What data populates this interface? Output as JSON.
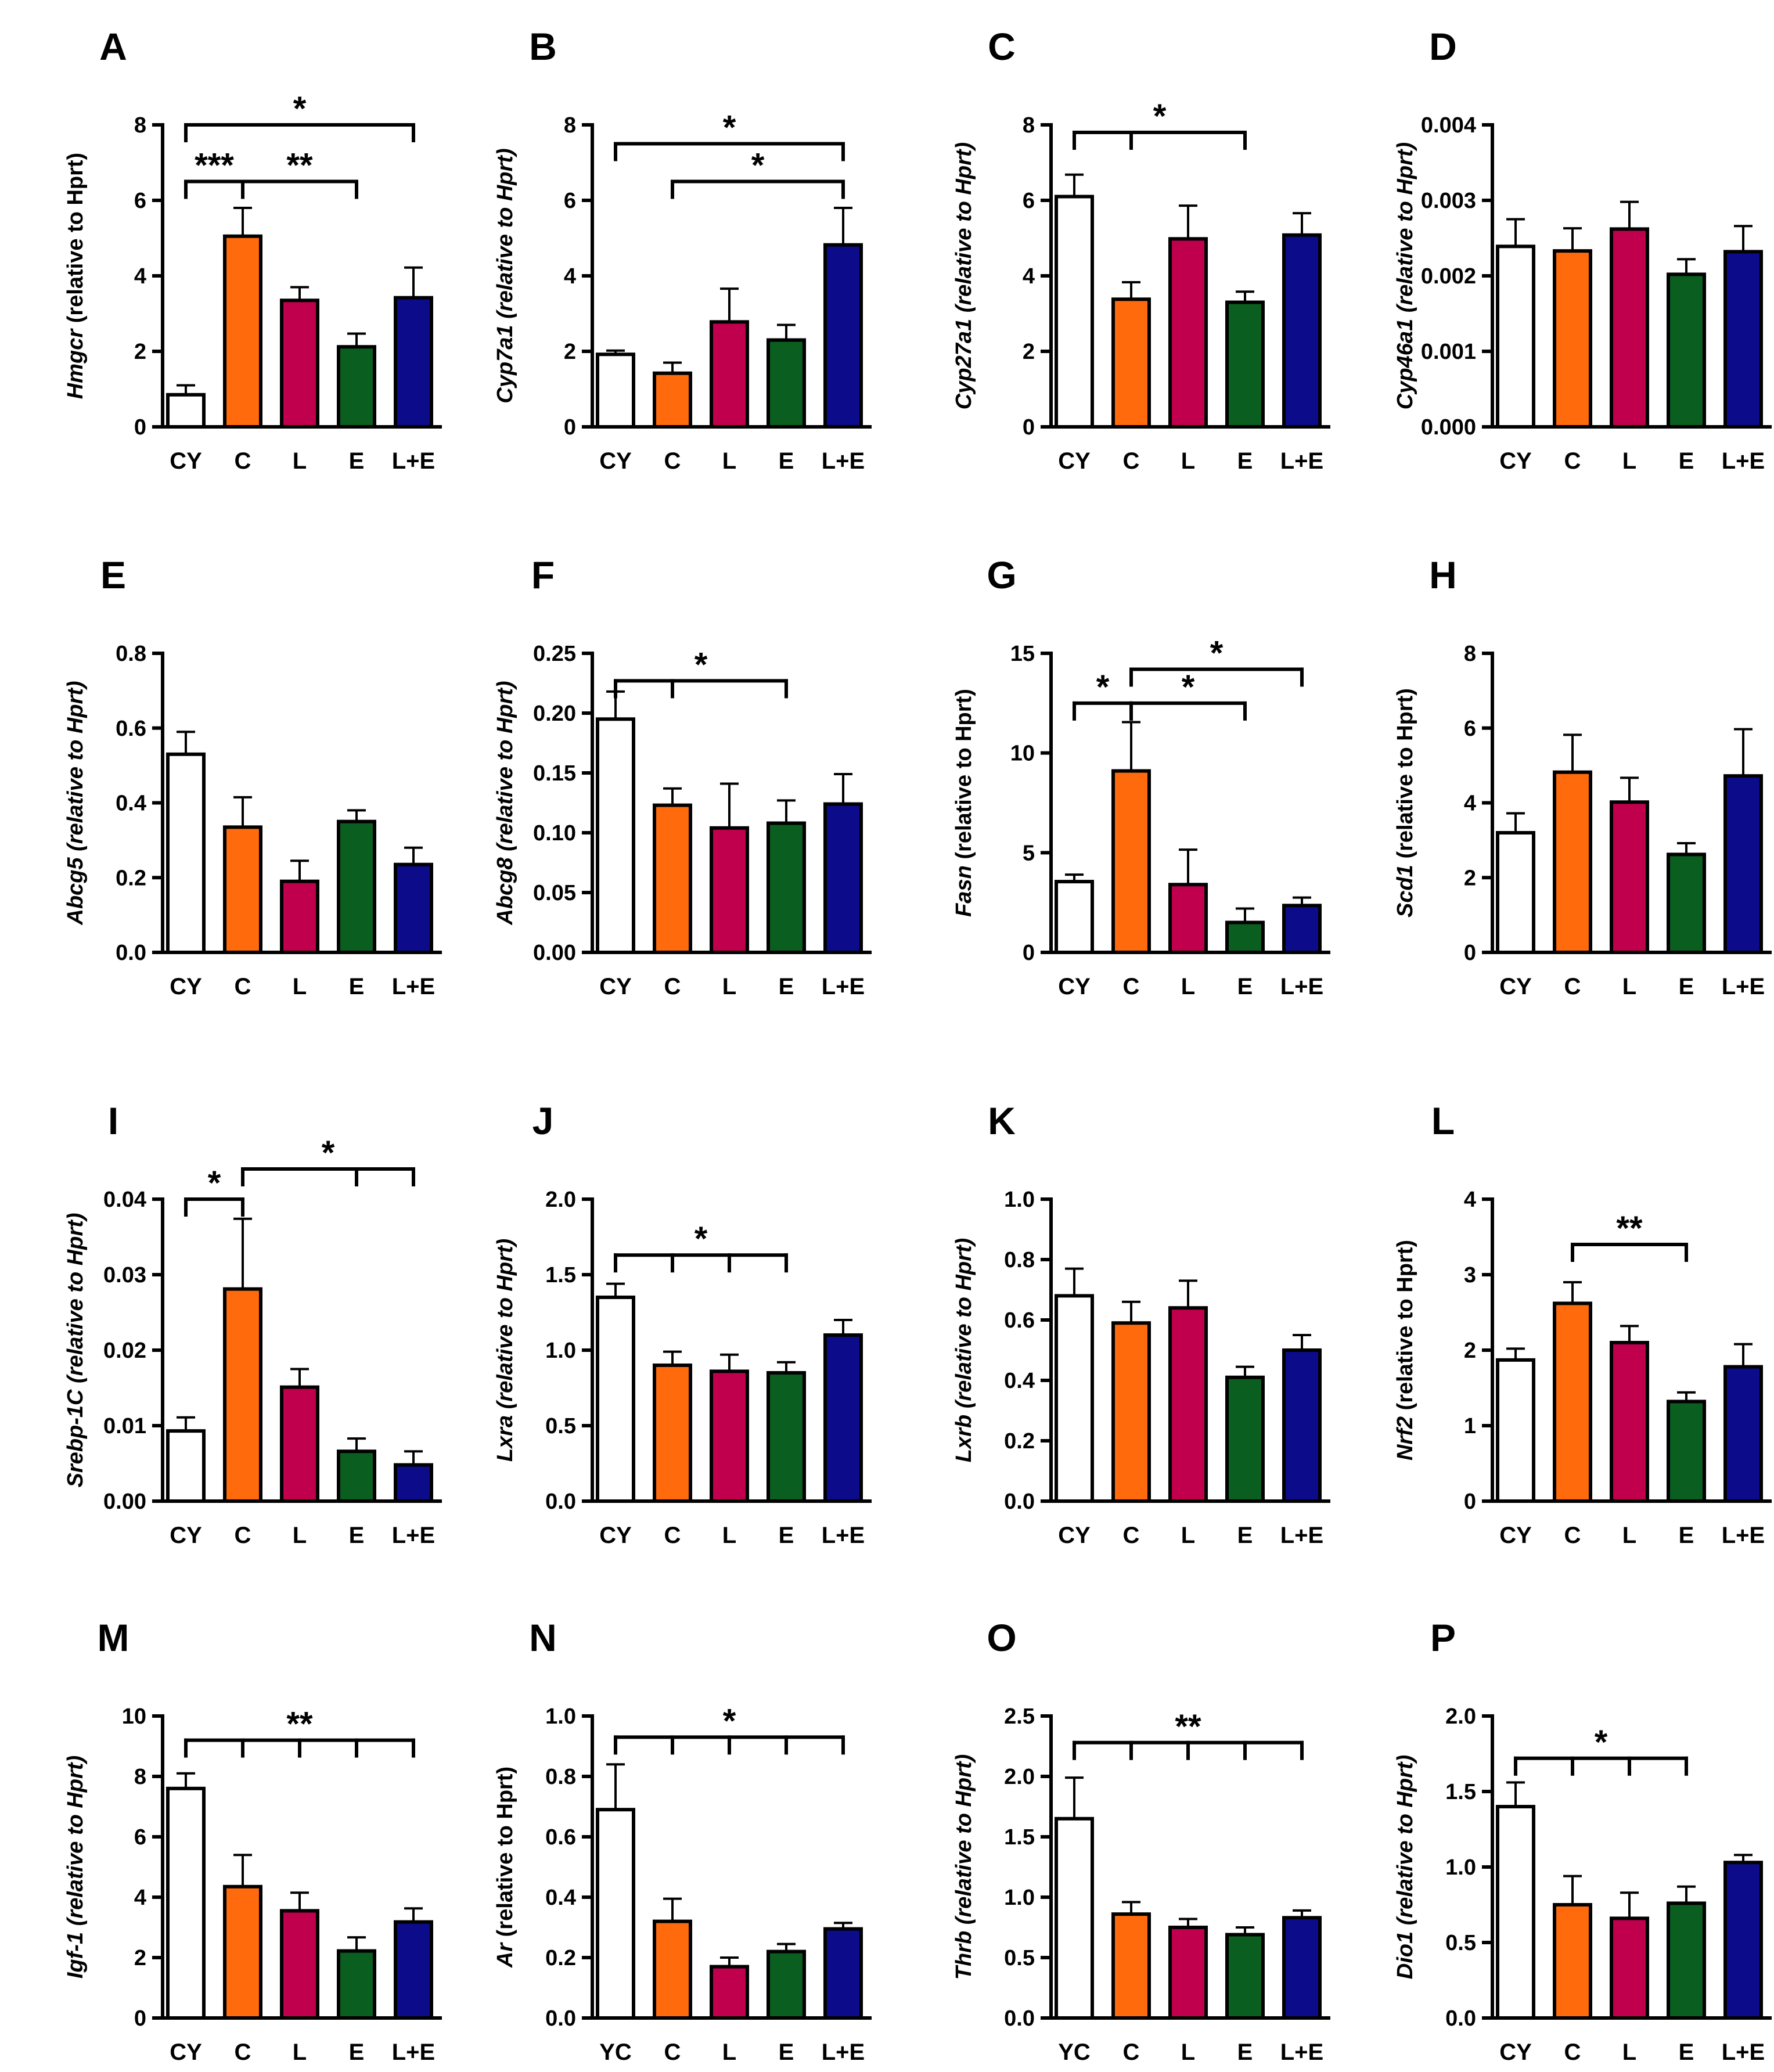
{
  "figure": {
    "bar_colors": {
      "CY": "#ffffff",
      "YC": "#ffffff",
      "C": "#ff6a0d",
      "L": "#c0004d",
      "E": "#0a5e1f",
      "L+E": "#0c0c8a"
    }
  },
  "chart_data": [
    {
      "panel": "A",
      "type": "bar",
      "gene": "Hmgcr",
      "ylabel_rest": " (relative to Hprt)",
      "italic_all": false,
      "categories": [
        "CY",
        "C",
        "L",
        "E",
        "L+E"
      ],
      "values": [
        0.85,
        5.05,
        3.35,
        2.12,
        3.42
      ],
      "errors": [
        0.25,
        0.75,
        0.35,
        0.35,
        0.8
      ],
      "ylim": [
        0,
        8
      ],
      "yticks": [
        "0",
        "2",
        "4",
        "6",
        "8"
      ],
      "sig": [
        {
          "label": "*",
          "from": 0,
          "to": [
            4
          ],
          "y": 8.0
        },
        {
          "label": "***",
          "from": 0,
          "to": [
            1
          ],
          "y": 6.5
        },
        {
          "label": "**",
          "from": 1,
          "to": [
            3
          ],
          "y": 6.5
        }
      ]
    },
    {
      "panel": "B",
      "type": "bar",
      "gene": "Cyp7a1",
      "ylabel_rest": " (relative to Hprt)",
      "italic_all": true,
      "categories": [
        "CY",
        "C",
        "L",
        "E",
        "L+E"
      ],
      "values": [
        1.92,
        1.42,
        2.78,
        2.3,
        4.82
      ],
      "errors": [
        0.1,
        0.28,
        0.88,
        0.4,
        0.98
      ],
      "ylim": [
        0,
        8
      ],
      "yticks": [
        "0",
        "2",
        "4",
        "6",
        "8"
      ],
      "sig": [
        {
          "label": "*",
          "from": 0,
          "to": [
            4
          ],
          "y": 7.5
        },
        {
          "label": "*",
          "from": 1,
          "to": [
            4
          ],
          "y": 6.5
        }
      ]
    },
    {
      "panel": "C",
      "type": "bar",
      "gene": "Cyp27a1",
      "ylabel_rest": " (relative to Hprt)",
      "italic_all": true,
      "categories": [
        "CY",
        "C",
        "L",
        "E",
        "L+E"
      ],
      "values": [
        6.1,
        3.38,
        4.98,
        3.3,
        5.08
      ],
      "errors": [
        0.58,
        0.45,
        0.88,
        0.28,
        0.58
      ],
      "ylim": [
        0,
        8
      ],
      "yticks": [
        "0",
        "2",
        "4",
        "6",
        "8"
      ],
      "sig": [
        {
          "label": "*",
          "from": 0,
          "to": [
            1,
            3
          ],
          "y": 7.8
        }
      ]
    },
    {
      "panel": "D",
      "type": "bar",
      "gene": "Cyp46a1",
      "ylabel_rest": " (relative to Hprt)",
      "italic_all": true,
      "categories": [
        "CY",
        "C",
        "L",
        "E",
        "L+E"
      ],
      "values": [
        0.00239,
        0.00233,
        0.00262,
        0.00202,
        0.00232
      ],
      "errors": [
        0.00036,
        0.0003,
        0.00036,
        0.0002,
        0.00034
      ],
      "ylim": [
        0,
        0.004
      ],
      "yticks": [
        "0.000",
        "0.001",
        "0.002",
        "0.003",
        "0.004"
      ],
      "sig": []
    },
    {
      "panel": "E",
      "type": "bar",
      "gene": "Abcg5",
      "ylabel_rest": " (relative to Hprt)",
      "italic_all": true,
      "categories": [
        "CY",
        "C",
        "L",
        "E",
        "L+E"
      ],
      "values": [
        0.53,
        0.335,
        0.19,
        0.35,
        0.235
      ],
      "errors": [
        0.06,
        0.08,
        0.055,
        0.03,
        0.045
      ],
      "ylim": [
        0,
        0.8
      ],
      "yticks": [
        "0.0",
        "0.2",
        "0.4",
        "0.6",
        "0.8"
      ],
      "sig": []
    },
    {
      "panel": "F",
      "type": "bar",
      "gene": "Abcg8",
      "ylabel_rest": " (relative to Hprt)",
      "italic_all": true,
      "categories": [
        "CY",
        "C",
        "L",
        "E",
        "L+E"
      ],
      "values": [
        0.195,
        0.123,
        0.104,
        0.108,
        0.124
      ],
      "errors": [
        0.023,
        0.014,
        0.037,
        0.019,
        0.025
      ],
      "ylim": [
        0,
        0.25
      ],
      "yticks": [
        "0.00",
        "0.05",
        "0.10",
        "0.15",
        "0.20",
        "0.25"
      ],
      "sig": [
        {
          "label": "*",
          "from": 0,
          "to": [
            1,
            3
          ],
          "y": 0.227
        }
      ]
    },
    {
      "panel": "G",
      "type": "bar",
      "gene": "Fasn",
      "ylabel_rest": " (relative to Hprt)",
      "italic_all": false,
      "categories": [
        "CY",
        "C",
        "L",
        "E",
        "L+E"
      ],
      "values": [
        3.55,
        9.1,
        3.4,
        1.5,
        2.35
      ],
      "errors": [
        0.35,
        2.45,
        1.75,
        0.7,
        0.4
      ],
      "ylim": [
        0,
        15
      ],
      "yticks": [
        "0",
        "5",
        "10",
        "15"
      ],
      "sig": [
        {
          "label": "*",
          "from": 0,
          "to": [
            1
          ],
          "y": 12.5
        },
        {
          "label": "*",
          "from": 1,
          "to": [
            3
          ],
          "y": 12.5
        },
        {
          "label": "*",
          "from": 1,
          "to": [
            4
          ],
          "y": 14.2
        }
      ]
    },
    {
      "panel": "H",
      "type": "bar",
      "gene": "Scd1",
      "ylabel_rest": " (relative to Hprt)",
      "italic_all": false,
      "categories": [
        "CY",
        "C",
        "L",
        "E",
        "L+E"
      ],
      "values": [
        3.2,
        4.82,
        4.02,
        2.62,
        4.72
      ],
      "errors": [
        0.52,
        1.0,
        0.65,
        0.3,
        1.25
      ],
      "ylim": [
        0,
        8
      ],
      "yticks": [
        "0",
        "2",
        "4",
        "6",
        "8"
      ],
      "sig": []
    },
    {
      "panel": "I",
      "type": "bar",
      "gene": "Srebp-1C",
      "ylabel_rest": " (relative to Hprt)",
      "italic_all": true,
      "categories": [
        "CY",
        "C",
        "L",
        "E",
        "L+E"
      ],
      "values": [
        0.0093,
        0.0281,
        0.0151,
        0.0066,
        0.0048
      ],
      "errors": [
        0.0018,
        0.0093,
        0.0024,
        0.0017,
        0.0018
      ],
      "ylim": [
        0,
        0.04
      ],
      "yticks": [
        "0.00",
        "0.01",
        "0.02",
        "0.03",
        "0.04"
      ],
      "sig": [
        {
          "label": "*",
          "from": 0,
          "to": [
            1
          ],
          "y": 0.04
        },
        {
          "label": "*",
          "from": 1,
          "to": [
            3,
            4
          ],
          "y": 0.044
        }
      ]
    },
    {
      "panel": "J",
      "type": "bar",
      "gene": "Lxra",
      "ylabel_rest": " (relative to Hprt)",
      "italic_all": true,
      "categories": [
        "CY",
        "C",
        "L",
        "E",
        "L+E"
      ],
      "values": [
        1.35,
        0.9,
        0.86,
        0.85,
        1.1
      ],
      "errors": [
        0.09,
        0.09,
        0.11,
        0.07,
        0.1
      ],
      "ylim": [
        0,
        2.0
      ],
      "yticks": [
        "0.0",
        "0.5",
        "1.0",
        "1.5",
        "2.0"
      ],
      "sig": [
        {
          "label": "*",
          "from": 0,
          "to": [
            1,
            2,
            3
          ],
          "y": 1.63
        }
      ]
    },
    {
      "panel": "K",
      "type": "bar",
      "gene": "Lxrb",
      "ylabel_rest": " (relative to Hprt)",
      "italic_all": true,
      "categories": [
        "CY",
        "C",
        "L",
        "E",
        "L+E"
      ],
      "values": [
        0.68,
        0.59,
        0.64,
        0.41,
        0.5
      ],
      "errors": [
        0.09,
        0.07,
        0.09,
        0.035,
        0.05
      ],
      "ylim": [
        0,
        1.0
      ],
      "yticks": [
        "0.0",
        "0.2",
        "0.4",
        "0.6",
        "0.8",
        "1.0"
      ],
      "sig": []
    },
    {
      "panel": "L",
      "type": "bar",
      "gene": "Nrf2",
      "ylabel_rest": " (relative to Hprt)",
      "italic_all": false,
      "categories": [
        "CY",
        "C",
        "L",
        "E",
        "L+E"
      ],
      "values": [
        1.87,
        2.62,
        2.1,
        1.32,
        1.78
      ],
      "errors": [
        0.15,
        0.28,
        0.22,
        0.12,
        0.3
      ],
      "ylim": [
        0,
        4
      ],
      "yticks": [
        "0",
        "1",
        "2",
        "3",
        "4"
      ],
      "sig": [
        {
          "label": "**",
          "from": 1,
          "to": [
            3
          ],
          "y": 3.4
        }
      ]
    },
    {
      "panel": "M",
      "type": "bar",
      "gene": "Igf-1",
      "ylabel_rest": " (relative to Hprt)",
      "italic_all": true,
      "categories": [
        "CY",
        "C",
        "L",
        "E",
        "L+E"
      ],
      "values": [
        7.6,
        4.35,
        3.55,
        2.22,
        3.18
      ],
      "errors": [
        0.5,
        1.05,
        0.6,
        0.45,
        0.45
      ],
      "ylim": [
        0,
        10
      ],
      "yticks": [
        "0",
        "2",
        "4",
        "6",
        "8",
        "10"
      ],
      "sig": [
        {
          "label": "**",
          "from": 0,
          "to": [
            1,
            2,
            3,
            4
          ],
          "y": 9.2
        }
      ]
    },
    {
      "panel": "N",
      "type": "bar",
      "gene": "Ar",
      "ylabel_rest": " (relative to Hprt)",
      "italic_all": false,
      "categories": [
        "YC",
        "C",
        "L",
        "E",
        "L+E"
      ],
      "values": [
        0.69,
        0.32,
        0.17,
        0.22,
        0.295
      ],
      "errors": [
        0.15,
        0.075,
        0.03,
        0.025,
        0.02
      ],
      "ylim": [
        0,
        1.0
      ],
      "yticks": [
        "0.0",
        "0.2",
        "0.4",
        "0.6",
        "0.8",
        "1.0"
      ],
      "sig": [
        {
          "label": "*",
          "from": 0,
          "to": [
            1,
            2,
            3,
            4
          ],
          "y": 0.93
        }
      ]
    },
    {
      "panel": "O",
      "type": "bar",
      "gene": "Thrb",
      "ylabel_rest": " (relative to Hprt)",
      "italic_all": true,
      "categories": [
        "YC",
        "C",
        "L",
        "E",
        "L+E"
      ],
      "values": [
        1.65,
        0.86,
        0.75,
        0.69,
        0.83
      ],
      "errors": [
        0.34,
        0.1,
        0.07,
        0.06,
        0.06
      ],
      "ylim": [
        0,
        2.5
      ],
      "yticks": [
        "0.0",
        "0.5",
        "1.0",
        "1.5",
        "2.0",
        "2.5"
      ],
      "sig": [
        {
          "label": "**",
          "from": 0,
          "to": [
            1,
            2,
            3,
            4
          ],
          "y": 2.28
        }
      ]
    },
    {
      "panel": "P",
      "type": "bar",
      "gene": "Dio1",
      "ylabel_rest": " (relative to Hprt)",
      "italic_all": true,
      "categories": [
        "CY",
        "C",
        "L",
        "E",
        "L+E"
      ],
      "values": [
        1.4,
        0.75,
        0.66,
        0.76,
        1.03
      ],
      "errors": [
        0.16,
        0.19,
        0.17,
        0.11,
        0.05
      ],
      "ylim": [
        0,
        2.0
      ],
      "yticks": [
        "0.0",
        "0.5",
        "1.0",
        "1.5",
        "2.0"
      ],
      "sig": [
        {
          "label": "*",
          "from": 0,
          "to": [
            1,
            2,
            3
          ],
          "y": 1.72
        }
      ]
    }
  ]
}
